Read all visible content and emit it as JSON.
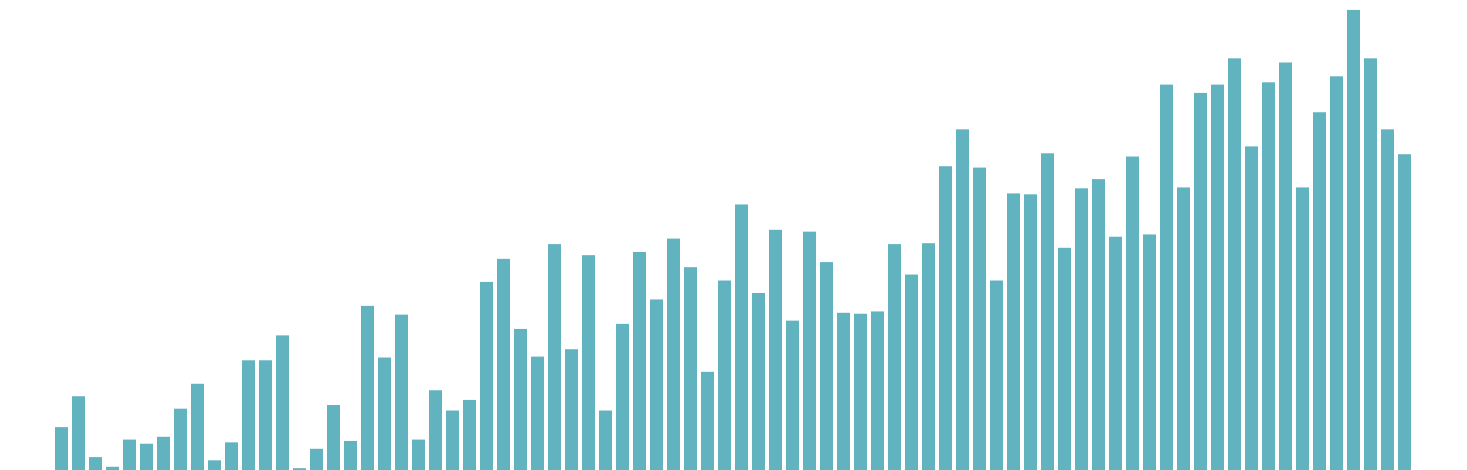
{
  "chart_data": {
    "type": "bar",
    "bar_color": "#62b3c0",
    "background": "#ffffff",
    "grid": false,
    "axes_visible": false,
    "ylim": [
      0,
      100
    ],
    "values": [
      9.3,
      16.0,
      2.8,
      0.7,
      6.6,
      5.7,
      7.2,
      13.3,
      18.7,
      2.1,
      6.0,
      23.8,
      23.8,
      29.2,
      0.4,
      4.6,
      14.1,
      6.3,
      35.6,
      24.4,
      33.7,
      6.6,
      17.3,
      12.9,
      15.2,
      40.8,
      45.8,
      30.6,
      24.6,
      49.0,
      26.2,
      46.6,
      12.9,
      31.7,
      47.3,
      37.0,
      50.2,
      44.0,
      21.3,
      41.1,
      57.6,
      38.4,
      52.1,
      32.4,
      51.7,
      45.1,
      34.1,
      33.9,
      34.4,
      49.0,
      42.4,
      49.2,
      65.9,
      73.9,
      65.6,
      41.1,
      60.0,
      59.8,
      68.7,
      48.2,
      61.1,
      63.1,
      50.6,
      68.0,
      51.1,
      83.6,
      61.3,
      81.8,
      83.6,
      89.3,
      70.2,
      84.1,
      88.4,
      61.3,
      77.6,
      85.4,
      99.8,
      89.3,
      73.9,
      68.5
    ]
  }
}
